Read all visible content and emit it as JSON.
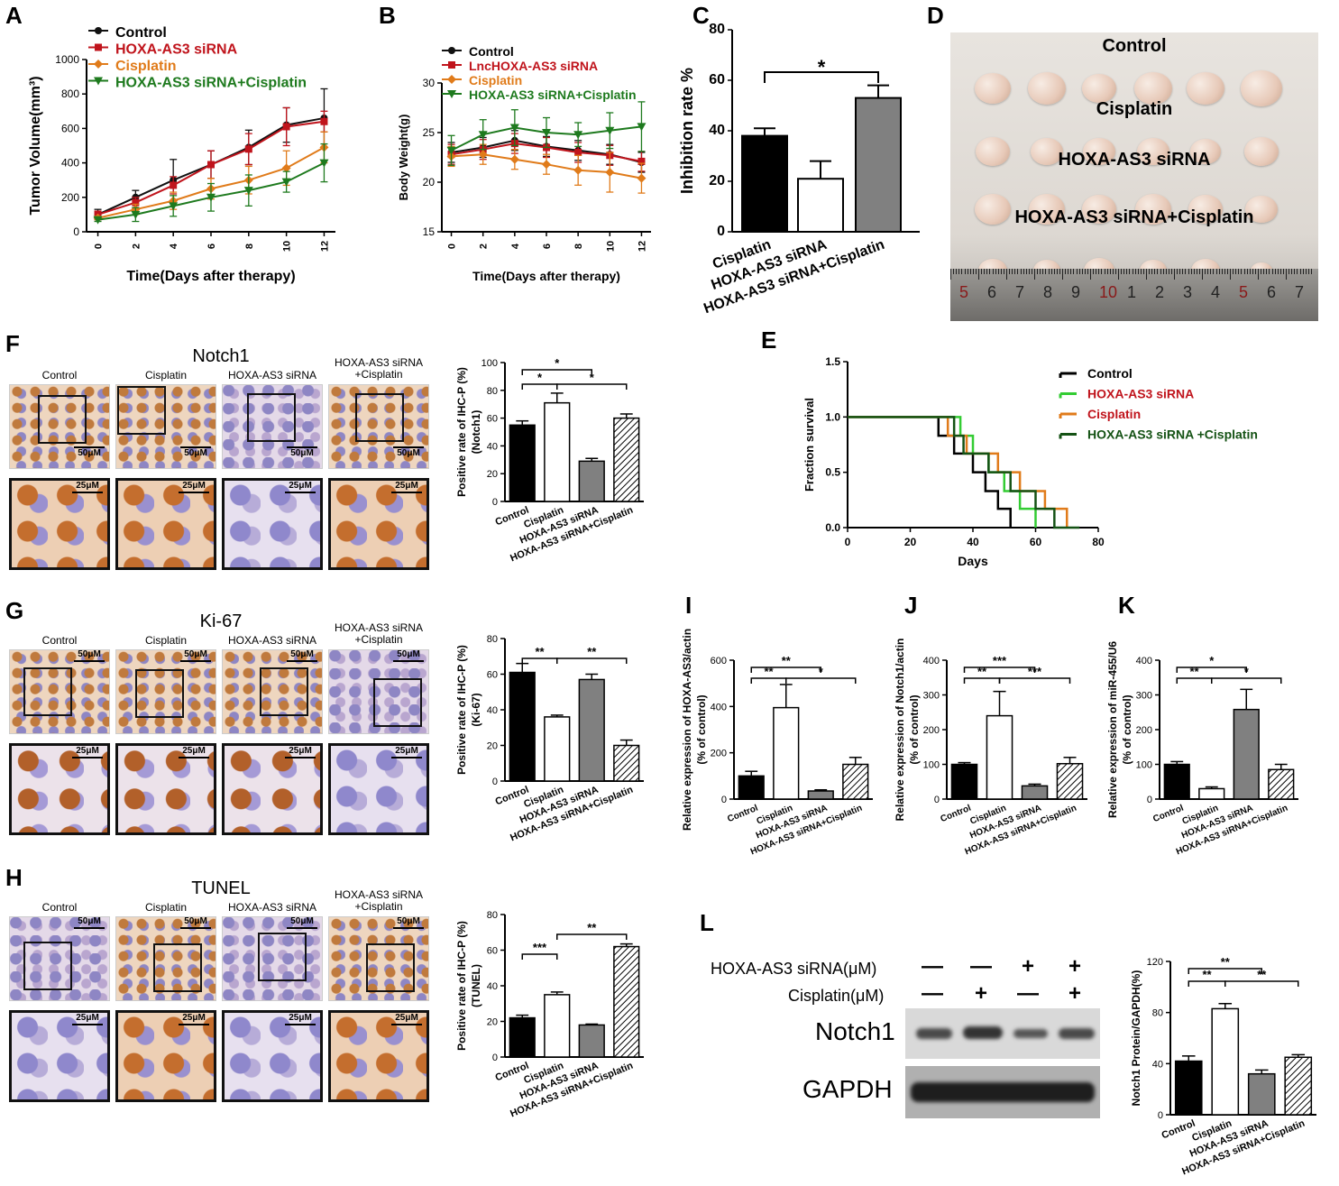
{
  "panels": {
    "A": "A",
    "B": "B",
    "C": "C",
    "D": "D",
    "E": "E",
    "F": "F",
    "G": "G",
    "H": "H",
    "I": "I",
    "J": "J",
    "K": "K",
    "L": "L"
  },
  "colors": {
    "control": "#111111",
    "siRNA": "#c0141c",
    "cisplatin": "#e07b1a",
    "combo": "#1e7a1e",
    "combo_E": "#145214",
    "siRNA_E": "#33cc33",
    "bar_dark": "#000000",
    "bar_gray": "#808080"
  },
  "groups4": [
    "Control",
    "Cisplatin",
    "HOXA-AS3 siRNA",
    "HOXA-AS3 siRNA+Cisplatin"
  ],
  "photoD": {
    "labels": [
      "Control",
      "Cisplatin",
      "HOXA-AS3 siRNA",
      "HOXA-AS3 siRNA+Cisplatin"
    ],
    "ruler": [
      "5",
      "6",
      "7",
      "8",
      "9",
      "10",
      "1",
      "2",
      "3",
      "4",
      "5",
      "6",
      "7"
    ]
  },
  "ihc": {
    "F": {
      "title": "Notch1",
      "cols": [
        "Control",
        "Cisplatin",
        "HOXA-AS3 siRNA",
        "HOXA-AS3 siRNA\n+Cisplatin"
      ]
    },
    "G": {
      "title": "Ki-67",
      "cols": [
        "Control",
        "Cisplatin",
        "HOXA-AS3 siRNA",
        "HOXA-AS3 siRNA\n+Cisplatin"
      ]
    },
    "H": {
      "title": "TUNEL",
      "cols": [
        "Control",
        "Cisplatin",
        "HOXA-AS3 siRNA",
        "HOXA-AS3 siRNA\n+Cisplatin"
      ]
    },
    "scale50": "50μM",
    "scale25": "25μM"
  },
  "western": {
    "row1_label": "HOXA-AS3 siRNA(μM)",
    "row2_label": "Cisplatin(μM)",
    "row1_signs": [
      "—",
      "—",
      "+",
      "+"
    ],
    "row2_signs": [
      "—",
      "+",
      "—",
      "+"
    ],
    "band1": "Notch1",
    "band2": "GAPDH"
  },
  "chart_data": [
    {
      "id": "A",
      "type": "line",
      "x": [
        0,
        2,
        4,
        6,
        8,
        10,
        12
      ],
      "xlabel": "Time(Days after therapy)",
      "ylabel": "Tumor Volume(mm³)",
      "ylim": [
        0,
        1000
      ],
      "yticks": [
        0,
        200,
        400,
        600,
        800,
        1000
      ],
      "series": [
        {
          "name": "Control",
          "values": [
            100,
            200,
            300,
            390,
            490,
            620,
            660
          ],
          "err": [
            30,
            40,
            120,
            80,
            100,
            100,
            170
          ]
        },
        {
          "name": "HOXA-AS3 siRNA",
          "values": [
            100,
            170,
            270,
            390,
            480,
            610,
            640
          ],
          "err": [
            20,
            30,
            50,
            80,
            90,
            110,
            60
          ]
        },
        {
          "name": "Cisplatin",
          "values": [
            80,
            130,
            180,
            250,
            300,
            370,
            490
          ],
          "err": [
            10,
            30,
            50,
            60,
            80,
            100,
            90
          ]
        },
        {
          "name": "HOXA-AS3 siRNA+Cisplatin",
          "values": [
            70,
            100,
            150,
            200,
            240,
            290,
            400
          ],
          "err": [
            10,
            40,
            60,
            80,
            90,
            60,
            110
          ]
        }
      ]
    },
    {
      "id": "B",
      "type": "line",
      "x": [
        0,
        2,
        4,
        6,
        8,
        10,
        12
      ],
      "xlabel": "Time(Days after therapy)",
      "ylabel": "Body Weight(g)",
      "ylim": [
        15,
        30
      ],
      "yticks": [
        15,
        20,
        25,
        30
      ],
      "series": [
        {
          "name": "Control",
          "values": [
            23,
            23.5,
            24.2,
            23.6,
            23.2,
            22.8,
            22
          ],
          "err": [
            1,
            1,
            1,
            1,
            1,
            1,
            1
          ]
        },
        {
          "name": "LncHOXA-AS3 siRNA",
          "values": [
            22.8,
            23.3,
            23.9,
            23.5,
            23.0,
            22.7,
            22.1
          ],
          "err": [
            1,
            1,
            1,
            1,
            1,
            1,
            1
          ]
        },
        {
          "name": "Cisplatin",
          "values": [
            22.6,
            22.8,
            22.3,
            21.8,
            21.2,
            21.0,
            20.4
          ],
          "err": [
            1,
            1,
            1,
            1,
            1.5,
            2,
            1.5
          ]
        },
        {
          "name": "HOXA-AS3 siRNA+Cisplatin",
          "values": [
            23.2,
            24.8,
            25.5,
            25.0,
            24.8,
            25.2,
            25.6
          ],
          "err": [
            1.5,
            1.5,
            1.8,
            1.5,
            1.2,
            1.8,
            2.5
          ]
        }
      ]
    },
    {
      "id": "C",
      "type": "bar",
      "categories": [
        "Cisplatin",
        "HOXA-AS3 siRNA",
        "HOXA-AS3 siRNA+Cisplatin"
      ],
      "values": [
        38,
        21,
        53
      ],
      "err": [
        3,
        7,
        5
      ],
      "ylabel": "Inhibition rate %",
      "ylim": [
        0,
        80
      ],
      "yticks": [
        0,
        20,
        40,
        60,
        80
      ],
      "sig": [
        {
          "from": 0,
          "to": 2,
          "label": "*"
        }
      ]
    },
    {
      "id": "E",
      "type": "line",
      "xlabel": "Days",
      "ylabel": "Fraction survival",
      "xlim": [
        0,
        80
      ],
      "xticks": [
        0,
        20,
        40,
        60,
        80
      ],
      "ylim": [
        0,
        1.5
      ],
      "yticks": [
        0.0,
        0.5,
        1.0,
        1.5
      ],
      "series": [
        {
          "name": "Control",
          "steps": [
            [
              0,
              1.0
            ],
            [
              29,
              1.0
            ],
            [
              29,
              0.83
            ],
            [
              34,
              0.83
            ],
            [
              34,
              0.67
            ],
            [
              40,
              0.67
            ],
            [
              40,
              0.5
            ],
            [
              44,
              0.5
            ],
            [
              44,
              0.33
            ],
            [
              48,
              0.33
            ],
            [
              48,
              0.17
            ],
            [
              52,
              0.17
            ],
            [
              52,
              0.0
            ]
          ]
        },
        {
          "name": "HOXA-AS3  siRNA",
          "steps": [
            [
              0,
              1.0
            ],
            [
              36,
              1.0
            ],
            [
              36,
              0.83
            ],
            [
              40,
              0.83
            ],
            [
              40,
              0.67
            ],
            [
              45,
              0.67
            ],
            [
              45,
              0.5
            ],
            [
              50,
              0.5
            ],
            [
              50,
              0.33
            ],
            [
              55,
              0.33
            ],
            [
              55,
              0.17
            ],
            [
              60,
              0.17
            ],
            [
              60,
              0.0
            ]
          ]
        },
        {
          "name": "Cisplatin",
          "steps": [
            [
              0,
              1.0
            ],
            [
              32,
              1.0
            ],
            [
              32,
              0.83
            ],
            [
              38,
              0.83
            ],
            [
              38,
              0.67
            ],
            [
              48,
              0.67
            ],
            [
              48,
              0.5
            ],
            [
              55,
              0.5
            ],
            [
              55,
              0.33
            ],
            [
              63,
              0.33
            ],
            [
              63,
              0.17
            ],
            [
              70,
              0.17
            ],
            [
              70,
              0.0
            ]
          ]
        },
        {
          "name": "HOXA-AS3  siRNA +Cisplatin",
          "steps": [
            [
              0,
              1.0
            ],
            [
              34,
              1.0
            ],
            [
              34,
              0.83
            ],
            [
              37,
              0.83
            ],
            [
              37,
              0.67
            ],
            [
              45,
              0.67
            ],
            [
              45,
              0.5
            ],
            [
              52,
              0.5
            ],
            [
              52,
              0.33
            ],
            [
              60,
              0.33
            ],
            [
              60,
              0.17
            ],
            [
              66,
              0.17
            ],
            [
              66,
              0.0
            ],
            [
              74,
              0.0
            ]
          ]
        }
      ]
    },
    {
      "id": "F-bar",
      "type": "bar",
      "categories": [
        "Control",
        "Cisplatin",
        "HOXA-AS3 siRNA",
        "HOXA-AS3 siRNA+Cisplatin"
      ],
      "values": [
        55,
        71,
        29,
        60
      ],
      "err": [
        3,
        7,
        2,
        3
      ],
      "ylabel": "Positive rate of IHC-P (%)",
      "ylabel2": "(Notch1)",
      "ylim": [
        0,
        100
      ],
      "yticks": [
        0,
        20,
        40,
        60,
        80,
        100
      ],
      "sig": [
        {
          "from": 0,
          "to": 2,
          "label": "*",
          "level": 2
        },
        {
          "from": 0,
          "to": 1,
          "label": "*",
          "level": 1
        },
        {
          "from": 1,
          "to": 3,
          "label": "*",
          "level": 1
        }
      ]
    },
    {
      "id": "G-bar",
      "type": "bar",
      "categories": [
        "Control",
        "Cisplatin",
        "HOXA-AS3 siRNA",
        "HOXA-AS3 siRNA+Cisplatin"
      ],
      "values": [
        61,
        36,
        57,
        20
      ],
      "err": [
        5,
        1,
        3,
        3
      ],
      "ylabel": "Positive rate of IHC-P (%)",
      "ylabel2": "(Ki-67)",
      "ylim": [
        0,
        80
      ],
      "yticks": [
        0,
        20,
        40,
        60,
        80
      ],
      "sig": [
        {
          "from": 0,
          "to": 1,
          "label": "**",
          "level": 1
        },
        {
          "from": 1,
          "to": 3,
          "label": "**",
          "level": 1
        }
      ]
    },
    {
      "id": "H-bar",
      "type": "bar",
      "categories": [
        "Control",
        "Cisplatin",
        "HOXA-AS3 siRNA",
        "HOXA-AS3 siRNA+Cisplatin"
      ],
      "values": [
        22,
        35,
        18,
        62
      ],
      "err": [
        1.5,
        1.5,
        0.5,
        1.5
      ],
      "ylabel": "Positive rate of IHC-P (%)",
      "ylabel2": "(TUNEL)",
      "ylim": [
        0,
        80
      ],
      "yticks": [
        0,
        20,
        40,
        60,
        80
      ],
      "sig": [
        {
          "from": 0,
          "to": 1,
          "label": "***",
          "level": 1
        },
        {
          "from": 1,
          "to": 3,
          "label": "**",
          "level": 2
        }
      ]
    },
    {
      "id": "I",
      "type": "bar",
      "categories": [
        "Control",
        "Cisplatin",
        "HOXA-AS3 siRNA",
        "HOXA-AS3 siRNA+Cisplatin"
      ],
      "values": [
        100,
        395,
        35,
        150
      ],
      "err": [
        20,
        100,
        5,
        30
      ],
      "ylabel": "Relative expression of HOXA-AS3/actin",
      "ylabel2": "(% of control)",
      "ylim": [
        0,
        600
      ],
      "yticks": [
        0,
        200,
        400,
        600
      ],
      "sig": [
        {
          "from": 0,
          "to": 2,
          "label": "**",
          "level": 2
        },
        {
          "from": 0,
          "to": 1,
          "label": "**",
          "level": 1
        },
        {
          "from": 1,
          "to": 3,
          "label": "*",
          "level": 1
        }
      ]
    },
    {
      "id": "J",
      "type": "bar",
      "categories": [
        "Control",
        "Cisplatin",
        "HOXA-AS3 siRNA",
        "HOXA-AS3 siRNA+Cisplatin"
      ],
      "values": [
        100,
        240,
        38,
        102
      ],
      "err": [
        5,
        70,
        5,
        18
      ],
      "ylabel": "Relative expression of Notch1/actin",
      "ylabel2": "(% of control)",
      "ylim": [
        0,
        400
      ],
      "yticks": [
        0,
        100,
        200,
        300,
        400
      ],
      "sig": [
        {
          "from": 0,
          "to": 2,
          "label": "***",
          "level": 2
        },
        {
          "from": 0,
          "to": 1,
          "label": "**",
          "level": 1
        },
        {
          "from": 1,
          "to": 3,
          "label": "***",
          "level": 1
        }
      ]
    },
    {
      "id": "K",
      "type": "bar",
      "categories": [
        "Control",
        "Cisplatin",
        "HOXA-AS3 siRNA",
        "HOXA-AS3 siRNA+Cisplatin"
      ],
      "values": [
        100,
        30,
        258,
        85
      ],
      "err": [
        8,
        5,
        58,
        15
      ],
      "ylabel": "Relative expression of miR-455/U6",
      "ylabel2": "(% of control)",
      "ylim": [
        0,
        400
      ],
      "yticks": [
        0,
        100,
        200,
        300,
        400
      ],
      "sig": [
        {
          "from": 0,
          "to": 2,
          "label": "*",
          "level": 2
        },
        {
          "from": 0,
          "to": 1,
          "label": "**",
          "level": 1
        },
        {
          "from": 1,
          "to": 3,
          "label": "*",
          "level": 1
        }
      ]
    },
    {
      "id": "L-bar",
      "type": "bar",
      "categories": [
        "Control",
        "Cisplatin",
        "HOXA-AS3 siRNA",
        "HOXA-AS3 siRNA+Cisplatin"
      ],
      "values": [
        42,
        83,
        32,
        45
      ],
      "err": [
        4,
        4,
        3,
        2
      ],
      "ylabel": "Notch1 Protein/GAPDH(%)",
      "ylim": [
        0,
        120
      ],
      "yticks": [
        0,
        40,
        80,
        120
      ],
      "sig": [
        {
          "from": 0,
          "to": 2,
          "label": "**",
          "level": 2
        },
        {
          "from": 0,
          "to": 1,
          "label": "**",
          "level": 1
        },
        {
          "from": 1,
          "to": 3,
          "label": "**",
          "level": 1
        }
      ]
    }
  ]
}
